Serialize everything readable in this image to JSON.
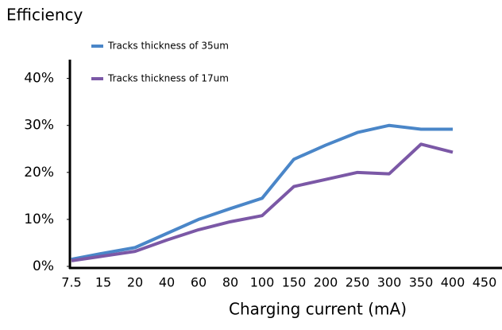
{
  "chart_data": {
    "type": "line",
    "title": "Efficiency",
    "x_label": "Charging current (mA)",
    "categories": [
      "7.5",
      "15",
      "20",
      "40",
      "60",
      "80",
      "100",
      "150",
      "200",
      "250",
      "300",
      "350",
      "400",
      "450"
    ],
    "series": [
      {
        "name": "Tracks thickness of 35um",
        "color": "#4a86c8",
        "values": [
          1.5,
          2.8,
          4,
          7,
          10,
          12.3,
          14.5,
          22.8,
          25.8,
          28.5,
          30,
          29.2,
          29.2,
          null
        ]
      },
      {
        "name": "Tracks thickness of 17um",
        "color": "#7b58a6",
        "values": [
          1.2,
          2.2,
          3.2,
          5.6,
          7.8,
          9.5,
          10.8,
          17,
          18.5,
          20,
          19.7,
          26,
          24.3,
          null
        ]
      }
    ],
    "ylim": [
      0,
      44
    ],
    "yticks": [
      {
        "value": 0,
        "label": "0%"
      },
      {
        "value": 10,
        "label": "10%"
      },
      {
        "value": 20,
        "label": "20%"
      },
      {
        "value": 30,
        "label": "30%"
      },
      {
        "value": 40,
        "label": "40%"
      }
    ],
    "grid": false
  }
}
